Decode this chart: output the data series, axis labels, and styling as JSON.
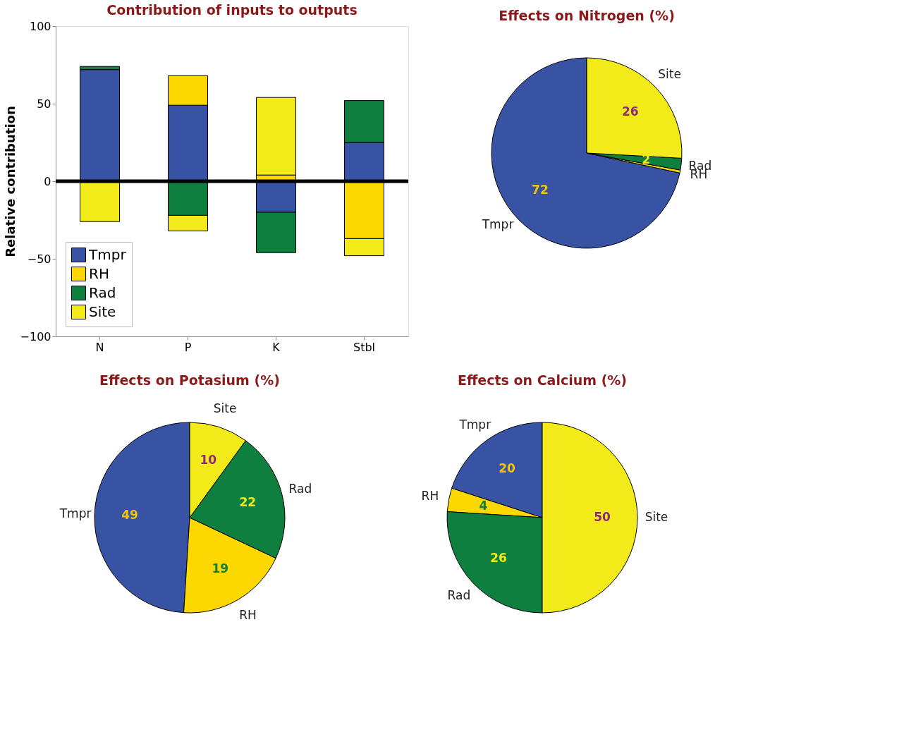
{
  "chart_data": [
    {
      "type": "bar",
      "title": "Contribution of inputs to outputs",
      "ylabel": "Relative contribution",
      "categories": [
        "N",
        "P",
        "K",
        "Stbl"
      ],
      "stacked": true,
      "series": [
        {
          "name": "Tmpr",
          "color": "#3953a4",
          "values": [
            72,
            49,
            -20,
            25
          ]
        },
        {
          "name": "RH",
          "color": "#fdd800",
          "values": [
            0,
            19,
            4,
            -37
          ]
        },
        {
          "name": "Rad",
          "color": "#0e7f3e",
          "values": [
            2,
            -22,
            -26,
            27
          ]
        },
        {
          "name": "Site",
          "color": "#f2ea19",
          "values": [
            -26,
            -10,
            50,
            -11
          ]
        }
      ],
      "ylim": [
        -100,
        100
      ],
      "yticks": [
        -100,
        -50,
        0,
        50,
        100
      ],
      "grid": false,
      "legend": "bottom left",
      "ref_lines": [
        {
          "axis": "y",
          "value": 0,
          "color": "#000000"
        }
      ]
    },
    {
      "type": "pie",
      "title": "Effects on Nitrogen (%)",
      "categories": [
        "Tmpr",
        "RH",
        "Rad",
        "Site"
      ],
      "values": [
        72,
        0.5,
        2,
        26
      ],
      "value_labels": [
        "72",
        null,
        "2",
        "26"
      ],
      "colors": [
        "#3953a4",
        "#fdd800",
        "#0e7f3e",
        "#f2ea19"
      ]
    },
    {
      "type": "pie",
      "title": "Effects on Potasium (%)",
      "categories": [
        "Tmpr",
        "RH",
        "Rad",
        "Site"
      ],
      "values": [
        49,
        19,
        22,
        10
      ],
      "data_labels": true,
      "colors": [
        "#3953a4",
        "#fdd800",
        "#0e7f3e",
        "#f2ea19"
      ]
    },
    {
      "type": "pie",
      "title": "Effects on Calcium (%)",
      "categories": [
        "Tmpr",
        "RH",
        "Rad",
        "Site"
      ],
      "values": [
        20,
        4,
        26,
        50
      ],
      "data_labels": true,
      "colors": [
        "#3953a4",
        "#fdd800",
        "#0e7f3e",
        "#f2ea19"
      ]
    }
  ]
}
